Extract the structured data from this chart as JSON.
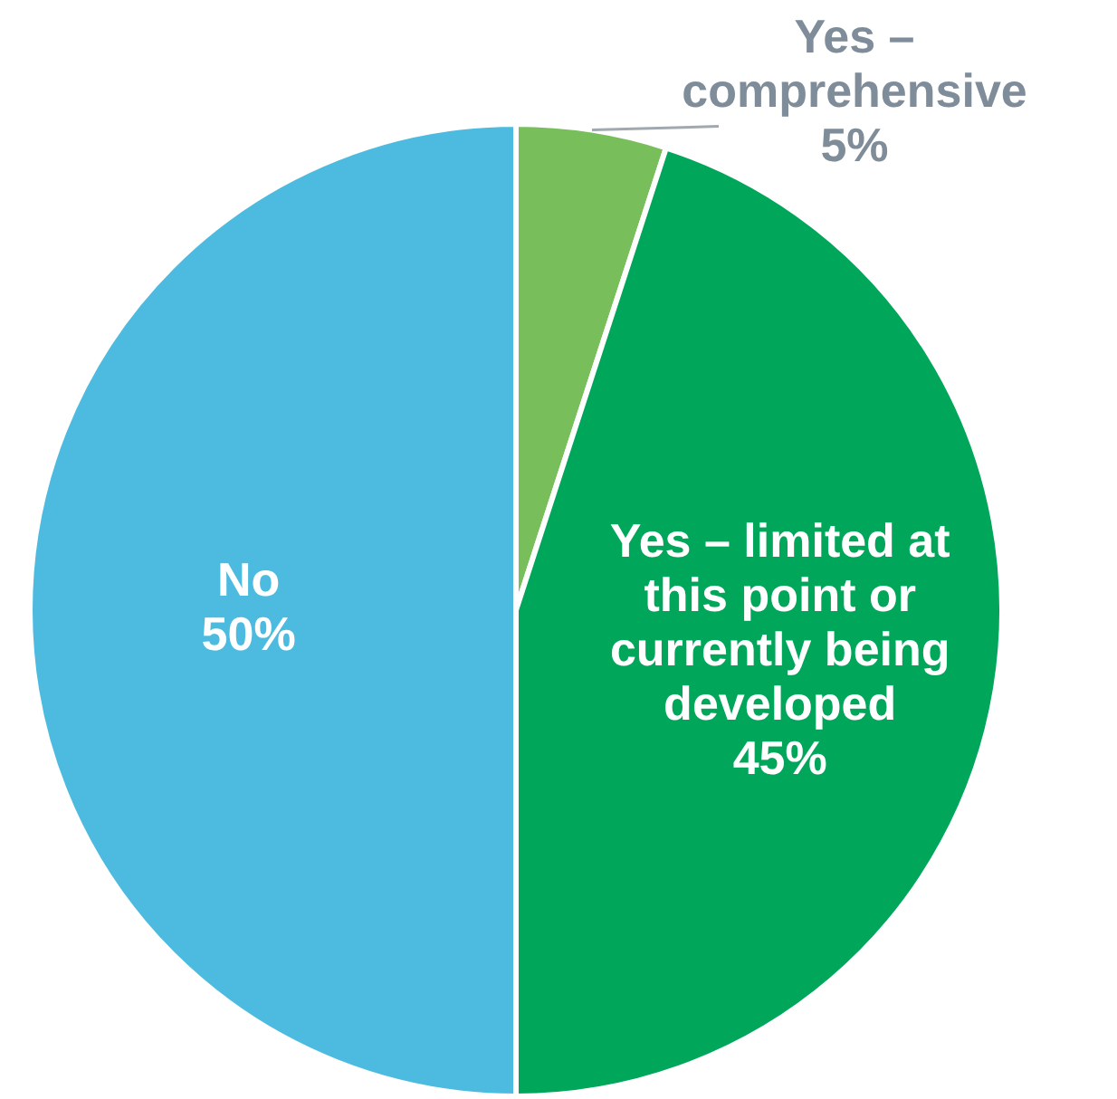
{
  "chart_data": {
    "type": "pie",
    "categories": [
      "Yes – comprehensive",
      "Yes – limited at this point or currently being developed",
      "No"
    ],
    "values": [
      5,
      45,
      50
    ],
    "colors": [
      "#78bf5c",
      "#00a65a",
      "#4dbbe0"
    ],
    "value_labels": [
      "5%",
      "45%",
      "50%"
    ],
    "legend": false
  }
}
